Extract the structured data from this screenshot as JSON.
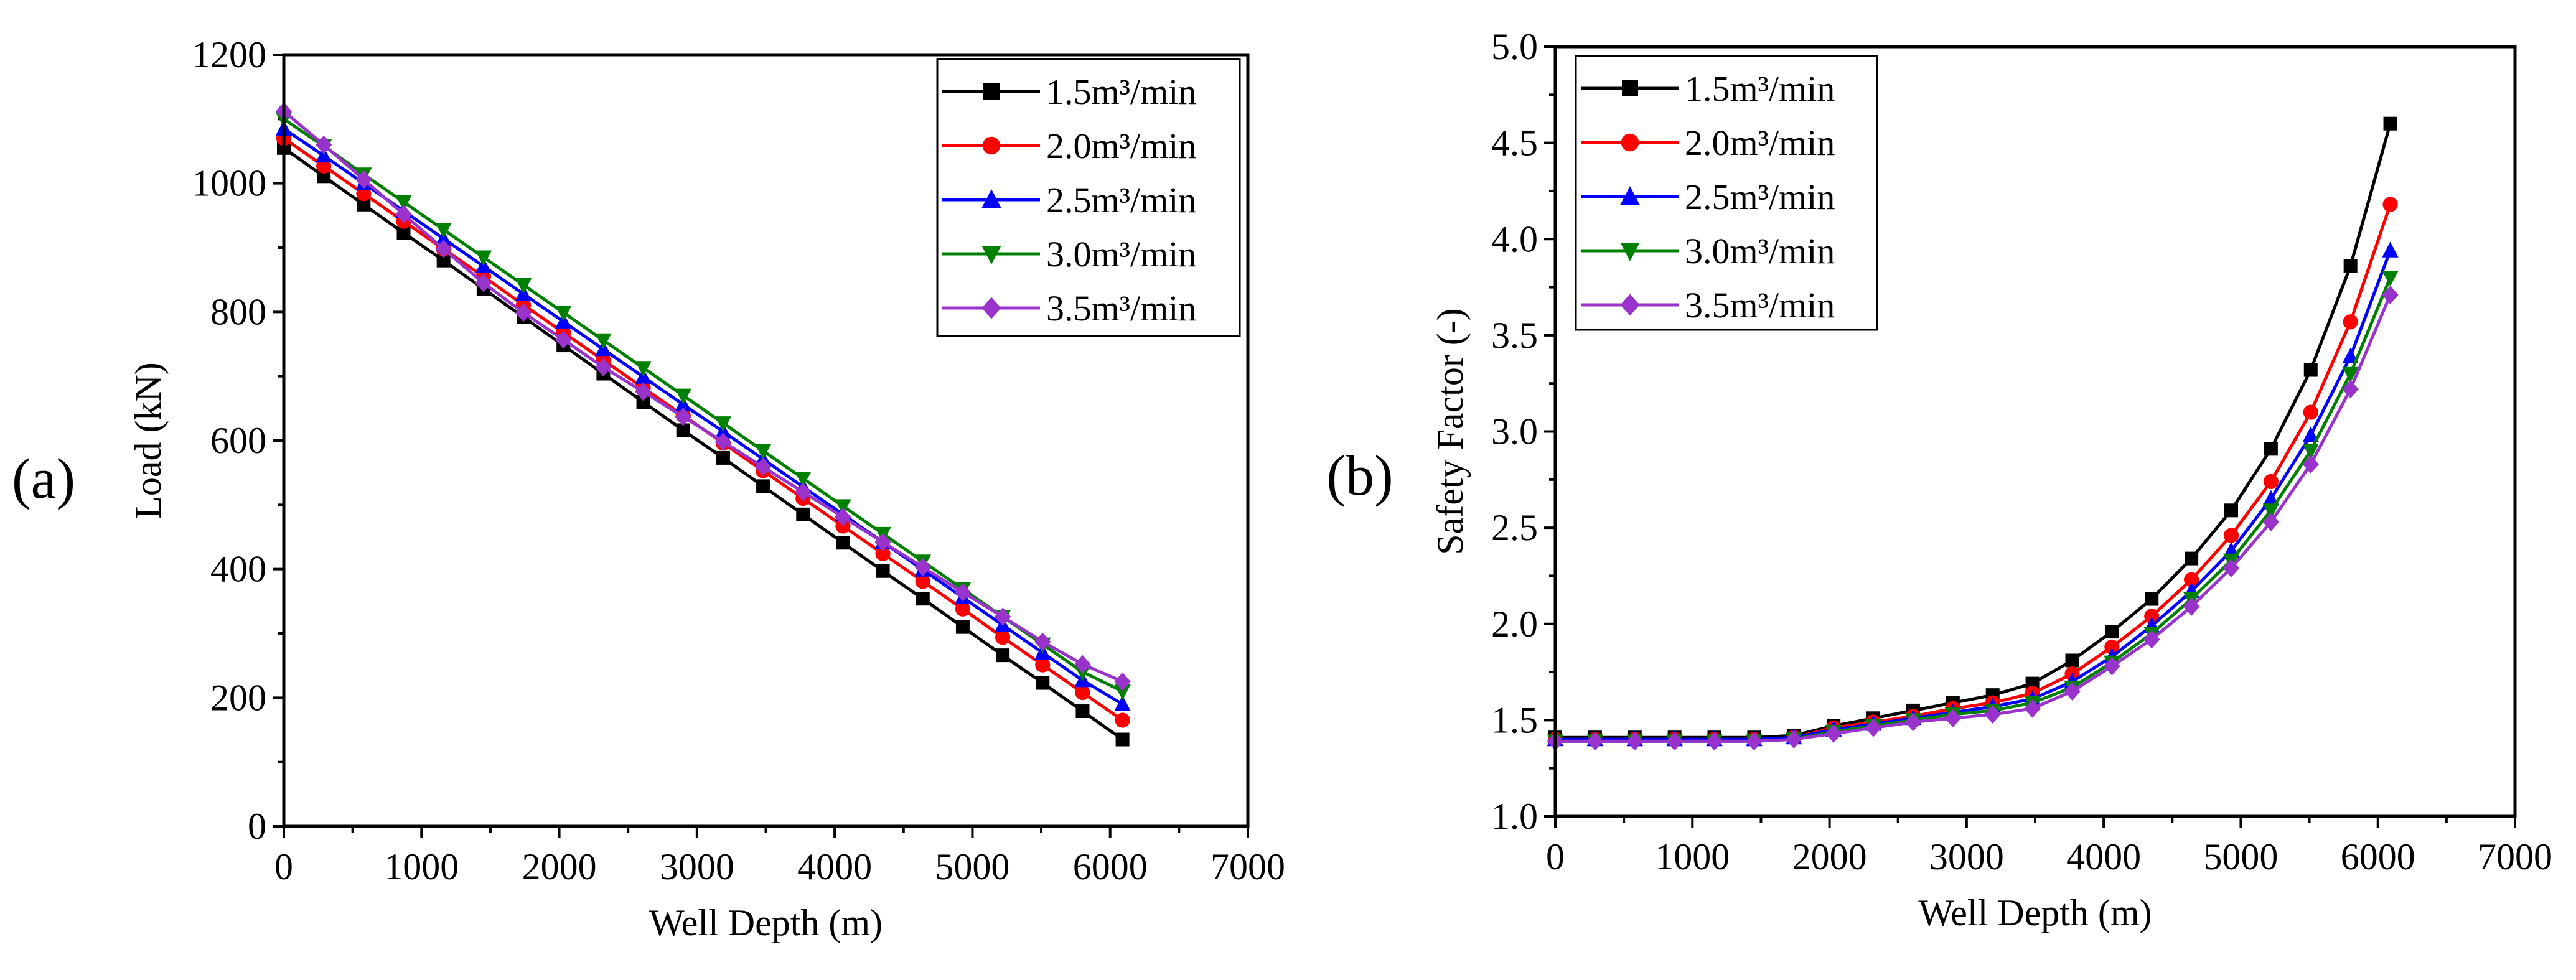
{
  "colors": {
    "1.5": "#000000",
    "2.0": "#ff0000",
    "2.5": "#0000ff",
    "3.0": "#008000",
    "3.5": "#9933cc"
  },
  "chart_data": [
    {
      "type": "line",
      "panel_label": "(a)",
      "xlabel": "Well Depth (m)",
      "ylabel": "Load (kN)",
      "xlim": [
        0,
        7000
      ],
      "ylim": [
        0,
        1200
      ],
      "xticks": [
        "0",
        "1000",
        "2000",
        "3000",
        "4000",
        "5000",
        "6000",
        "7000"
      ],
      "yticks": [
        "0",
        "200",
        "400",
        "600",
        "800",
        "1000",
        "1200"
      ],
      "legend_position": "top-right",
      "x": [
        0,
        290,
        580,
        870,
        1160,
        1450,
        1740,
        2030,
        2320,
        2610,
        2900,
        3190,
        3480,
        3770,
        4060,
        4350,
        4640,
        4930,
        5220,
        5510,
        5800,
        6090
      ],
      "series": [
        {
          "name": "1.5m³/min",
          "color": "#000000",
          "marker": "square",
          "values": [
            1055,
            1011,
            967,
            923,
            880,
            836,
            792,
            748,
            704,
            660,
            616,
            573,
            529,
            485,
            441,
            397,
            354,
            310,
            266,
            223,
            179,
            135
          ]
        },
        {
          "name": "2.0m³/min",
          "color": "#ff0000",
          "marker": "circle",
          "values": [
            1070,
            1027,
            984,
            941,
            898,
            855,
            811,
            768,
            725,
            682,
            639,
            596,
            553,
            510,
            467,
            424,
            381,
            338,
            294,
            251,
            208,
            165
          ]
        },
        {
          "name": "2.5m³/min",
          "color": "#0000ff",
          "marker": "triangle-up",
          "values": [
            1085,
            1043,
            1000,
            957,
            914,
            871,
            828,
            785,
            742,
            699,
            656,
            614,
            571,
            528,
            485,
            442,
            399,
            356,
            313,
            270,
            227,
            190
          ]
        },
        {
          "name": "3.0m³/min",
          "color": "#008000",
          "marker": "triangle-down",
          "values": [
            1100,
            1058,
            1014,
            971,
            928,
            885,
            842,
            799,
            756,
            713,
            670,
            627,
            584,
            541,
            498,
            455,
            412,
            369,
            326,
            283,
            240,
            210
          ]
        },
        {
          "name": "3.5m³/min",
          "color": "#9933cc",
          "marker": "diamond",
          "values": [
            1112,
            1060,
            1006,
            952,
            898,
            845,
            799,
            757,
            714,
            676,
            637,
            598,
            559,
            520,
            481,
            442,
            403,
            364,
            326,
            287,
            252,
            225
          ]
        }
      ]
    },
    {
      "type": "line",
      "panel_label": "(b)",
      "xlabel": "Well Depth (m)",
      "ylabel": "Safety Factor (-)",
      "xlim": [
        0,
        7000
      ],
      "ylim": [
        1.0,
        5.0
      ],
      "xticks": [
        "0",
        "1000",
        "2000",
        "3000",
        "4000",
        "5000",
        "6000",
        "7000"
      ],
      "yticks": [
        "1.0",
        "1.5",
        "2.0",
        "2.5",
        "3.0",
        "3.5",
        "4.0",
        "4.5",
        "5.0"
      ],
      "legend_position": "top-left",
      "x": [
        0,
        290,
        580,
        870,
        1160,
        1450,
        1740,
        2030,
        2320,
        2610,
        2900,
        3190,
        3480,
        3770,
        4060,
        4350,
        4640,
        4930,
        5220,
        5510,
        5800,
        6090
      ],
      "series": [
        {
          "name": "1.5m³/min",
          "color": "#000000",
          "marker": "square",
          "values": [
            1.41,
            1.41,
            1.41,
            1.41,
            1.41,
            1.41,
            1.42,
            1.47,
            1.51,
            1.55,
            1.59,
            1.63,
            1.69,
            1.81,
            1.96,
            2.13,
            2.34,
            2.59,
            2.91,
            3.32,
            3.86,
            4.6
          ]
        },
        {
          "name": "2.0m³/min",
          "color": "#ff0000",
          "marker": "circle",
          "values": [
            1.4,
            1.4,
            1.4,
            1.4,
            1.4,
            1.4,
            1.41,
            1.46,
            1.49,
            1.52,
            1.56,
            1.59,
            1.64,
            1.74,
            1.88,
            2.04,
            2.23,
            2.46,
            2.74,
            3.1,
            3.57,
            4.18
          ]
        },
        {
          "name": "2.5m³/min",
          "color": "#0000ff",
          "marker": "triangle-up",
          "values": [
            1.4,
            1.4,
            1.4,
            1.4,
            1.4,
            1.4,
            1.41,
            1.45,
            1.48,
            1.51,
            1.54,
            1.57,
            1.61,
            1.7,
            1.83,
            1.99,
            2.17,
            2.38,
            2.65,
            2.98,
            3.39,
            3.94
          ]
        },
        {
          "name": "3.0m³/min",
          "color": "#008000",
          "marker": "triangle-down",
          "values": [
            1.39,
            1.39,
            1.39,
            1.39,
            1.39,
            1.39,
            1.4,
            1.44,
            1.47,
            1.5,
            1.53,
            1.55,
            1.59,
            1.67,
            1.8,
            1.95,
            2.13,
            2.33,
            2.59,
            2.9,
            3.3,
            3.8
          ]
        },
        {
          "name": "3.5m³/min",
          "color": "#9933cc",
          "marker": "diamond",
          "values": [
            1.39,
            1.39,
            1.39,
            1.39,
            1.39,
            1.39,
            1.4,
            1.43,
            1.46,
            1.49,
            1.51,
            1.53,
            1.56,
            1.65,
            1.78,
            1.92,
            2.09,
            2.29,
            2.53,
            2.83,
            3.22,
            3.71
          ]
        }
      ]
    }
  ]
}
